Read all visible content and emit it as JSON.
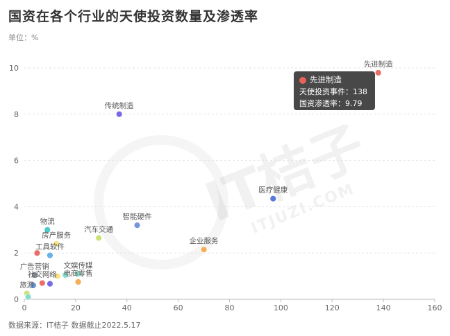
{
  "header": {
    "title": "国资在各个行业的天使投资数量及渗透率",
    "unit": "单位：%"
  },
  "footer": {
    "source": "数据来源：IT桔子 数据截止2022.5.17"
  },
  "watermark": {
    "brand": "IT桔子",
    "domain": "ITJUZI.COM"
  },
  "tooltip": {
    "name": "先进制造",
    "line1": "天使投资事件：138",
    "line2": "国资渗透率：9.79",
    "color": "#e8625a"
  },
  "chart_data": {
    "type": "scatter",
    "xlim": [
      0,
      160
    ],
    "ylim": [
      0,
      10
    ],
    "xticks": [
      0,
      20,
      40,
      60,
      80,
      100,
      120,
      140,
      160
    ],
    "yticks": [
      0,
      2,
      4,
      6,
      8,
      10
    ],
    "grid": "horizontal dashed",
    "points": [
      {
        "label": "先进制造",
        "x": 138,
        "y": 9.79,
        "color": "#e8625a"
      },
      {
        "label": "传统制造",
        "x": 37,
        "y": 8.0,
        "color": "#6c5ce7"
      },
      {
        "label": "医疗健康",
        "x": 97,
        "y": 4.35,
        "color": "#4a6fd8"
      },
      {
        "label": "智能硬件",
        "x": 44,
        "y": 3.2,
        "color": "#6a8fd8"
      },
      {
        "label": "物流",
        "x": 9,
        "y": 3.0,
        "color": "#3cc6c9"
      },
      {
        "label": "汽车交通",
        "x": 29,
        "y": 2.65,
        "color": "#c6e06a"
      },
      {
        "label": "房产服务",
        "x": 12.5,
        "y": 2.4,
        "color": "#f6e27a"
      },
      {
        "label": "企业服务",
        "x": 70,
        "y": 2.15,
        "color": "#f4a64a"
      },
      {
        "label": "工具软件",
        "x": 10,
        "y": 1.9,
        "color": "#5aa9e6"
      },
      {
        "label": "",
        "x": 5,
        "y": 2.0,
        "color": "#e8625a"
      },
      {
        "label": "广告营销",
        "x": 4,
        "y": 1.05,
        "color": "#7a7f8c"
      },
      {
        "label": "文娱传媒",
        "x": 21,
        "y": 1.1,
        "color": "#7ed9c8"
      },
      {
        "label": "电商零售",
        "x": 21,
        "y": 0.75,
        "color": "#f4a64a"
      },
      {
        "label": "",
        "x": 13,
        "y": 1.0,
        "color": "#f6e27a"
      },
      {
        "label": "",
        "x": 16,
        "y": 1.05,
        "color": "#7ed9c8"
      },
      {
        "label": "社交网络",
        "x": 7,
        "y": 0.7,
        "color": "#e8625a"
      },
      {
        "label": "",
        "x": 10,
        "y": 0.67,
        "color": "#6c5ce7"
      },
      {
        "label": "",
        "x": 3.5,
        "y": 0.6,
        "color": "#5a8fd8"
      },
      {
        "label": "旅游",
        "x": 1,
        "y": 0.25,
        "color": "#c6e06a"
      },
      {
        "label": "",
        "x": 1.5,
        "y": 0.1,
        "color": "#7ed9c8"
      }
    ]
  }
}
